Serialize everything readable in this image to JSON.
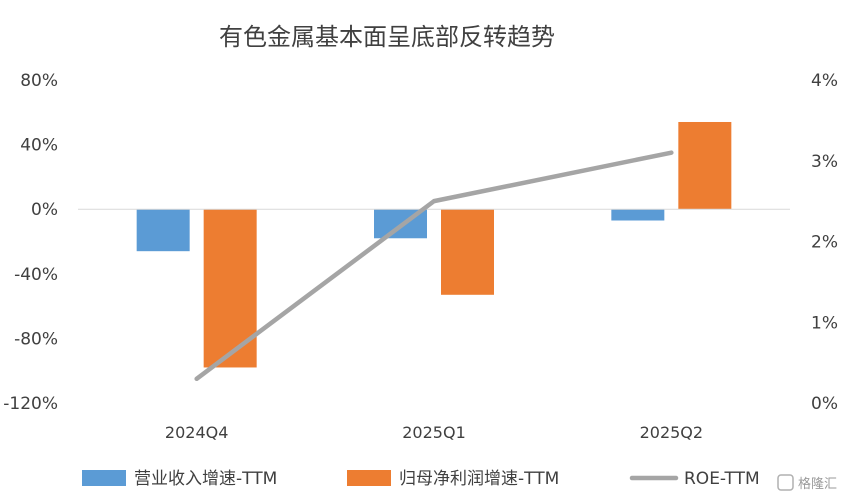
{
  "chart_data": {
    "type": "bar",
    "title": "有色金属基本面呈底部反转趋势",
    "categories": [
      "2024Q4",
      "2025Q1",
      "2025Q2"
    ],
    "series": [
      {
        "name": "营业收入增速-TTM",
        "type": "bar",
        "axis": "left",
        "color": "#5B9BD5",
        "values": [
          -26,
          -18,
          -7
        ]
      },
      {
        "name": "归母净利润增速-TTM",
        "type": "bar",
        "axis": "left",
        "color": "#ED7D31",
        "values": [
          -98,
          -53,
          54
        ]
      },
      {
        "name": "ROE-TTM",
        "type": "line",
        "axis": "right",
        "color": "#A5A5A5",
        "values": [
          0.3,
          2.5,
          3.1
        ]
      }
    ],
    "y_left": {
      "min": -120,
      "max": 80,
      "ticks": [
        80,
        40,
        0,
        -40,
        -80,
        -120
      ],
      "tick_labels": [
        "80%",
        "40%",
        "0%",
        "-40%",
        "-80%",
        "-120%"
      ]
    },
    "y_right": {
      "min": 0,
      "max": 4,
      "ticks": [
        4,
        3,
        2,
        1,
        0
      ],
      "tick_labels": [
        "4%",
        "3%",
        "2%",
        "1%",
        "0%"
      ]
    },
    "grid": false,
    "legend_position": "bottom",
    "watermark": "格隆汇"
  }
}
